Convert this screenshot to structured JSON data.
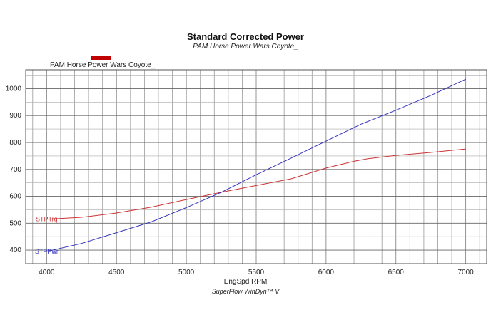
{
  "title": "Standard Corrected Power",
  "subtitle": "PAM Horse Power Wars Coyote_",
  "legend": {
    "label": "PAM Horse Power Wars Coyote_",
    "color": "#c00000"
  },
  "footer": "SuperFlow WinDyn™ V",
  "chart_data": {
    "type": "line",
    "xlabel": "EngSpd RPM",
    "ylabel": "",
    "xlim": [
      3850,
      7150
    ],
    "ylim": [
      350,
      1070
    ],
    "x_ticks": [
      4000,
      4500,
      5000,
      5500,
      6000,
      6500,
      7000
    ],
    "y_ticks": [
      400,
      500,
      600,
      700,
      800,
      900,
      1000
    ],
    "grid": true,
    "series": [
      {
        "name": "STPTrq",
        "color": "#cc3333",
        "x": [
          4000,
          4250,
          4500,
          4750,
          5000,
          5250,
          5500,
          5750,
          6000,
          6200,
          6300,
          6500,
          6750,
          7000
        ],
        "y": [
          515,
          522,
          538,
          560,
          588,
          615,
          640,
          665,
          705,
          730,
          740,
          752,
          763,
          776
        ]
      },
      {
        "name": "STPPwr",
        "color": "#3333bb",
        "x": [
          4000,
          4250,
          4500,
          4750,
          5000,
          5250,
          5500,
          5750,
          6000,
          6250,
          6500,
          6750,
          7000
        ],
        "y": [
          395,
          425,
          465,
          505,
          558,
          615,
          680,
          742,
          805,
          868,
          920,
          975,
          1035
        ]
      }
    ]
  }
}
